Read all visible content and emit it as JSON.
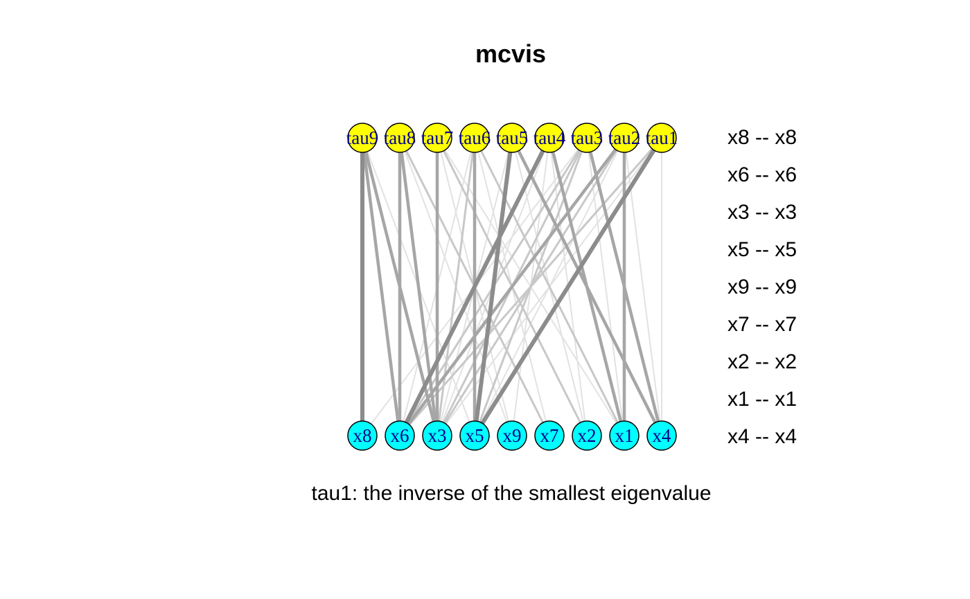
{
  "title": "mcvis",
  "caption": "tau1: the inverse of the smallest eigenvalue",
  "colors": {
    "tau_node_fill": "#ffff00",
    "x_node_fill": "#00ffff",
    "node_border": "#000000",
    "node_label": "#00008b",
    "edge_strong": "#8c8c8c",
    "edge_medium": "#a6a6a6",
    "edge_weak": "#c8c8c8",
    "edge_faint": "#e2e2e2"
  },
  "tau_nodes": [
    "tau9",
    "tau8",
    "tau7",
    "tau6",
    "tau5",
    "tau4",
    "tau3",
    "tau2",
    "tau1"
  ],
  "x_nodes": [
    "x8",
    "x6",
    "x3",
    "x5",
    "x9",
    "x7",
    "x2",
    "x1",
    "x4"
  ],
  "legend": [
    "x8 -- x8",
    "x6 -- x6",
    "x3 -- x3",
    "x5 -- x5",
    "x9 -- x9",
    "x7 -- x7",
    "x2 -- x2",
    "x1 -- x1",
    "x4 -- x4"
  ],
  "edges": [
    {
      "from": "tau1",
      "to": "x5",
      "strength": "strong"
    },
    {
      "from": "tau1",
      "to": "x6",
      "strength": "weak"
    },
    {
      "from": "tau1",
      "to": "x3",
      "strength": "faint"
    },
    {
      "from": "tau1",
      "to": "x4",
      "strength": "faint"
    },
    {
      "from": "tau2",
      "to": "x1",
      "strength": "medium"
    },
    {
      "from": "tau2",
      "to": "x6",
      "strength": "medium"
    },
    {
      "from": "tau2",
      "to": "x3",
      "strength": "weak"
    },
    {
      "from": "tau2",
      "to": "x5",
      "strength": "faint"
    },
    {
      "from": "tau2",
      "to": "x4",
      "strength": "faint"
    },
    {
      "from": "tau3",
      "to": "x4",
      "strength": "medium"
    },
    {
      "from": "tau3",
      "to": "x3",
      "strength": "weak"
    },
    {
      "from": "tau3",
      "to": "x5",
      "strength": "weak"
    },
    {
      "from": "tau3",
      "to": "x6",
      "strength": "weak"
    },
    {
      "from": "tau3",
      "to": "x1",
      "strength": "faint"
    },
    {
      "from": "tau3",
      "to": "x8",
      "strength": "faint"
    },
    {
      "from": "tau4",
      "to": "x6",
      "strength": "strong"
    },
    {
      "from": "tau4",
      "to": "x1",
      "strength": "medium"
    },
    {
      "from": "tau4",
      "to": "x2",
      "strength": "faint"
    },
    {
      "from": "tau4",
      "to": "x3",
      "strength": "faint"
    },
    {
      "from": "tau4",
      "to": "x9",
      "strength": "faint"
    },
    {
      "from": "tau5",
      "to": "x5",
      "strength": "strong"
    },
    {
      "from": "tau5",
      "to": "x4",
      "strength": "medium"
    },
    {
      "from": "tau5",
      "to": "x3",
      "strength": "faint"
    },
    {
      "from": "tau5",
      "to": "x2",
      "strength": "faint"
    },
    {
      "from": "tau6",
      "to": "x5",
      "strength": "medium"
    },
    {
      "from": "tau6",
      "to": "x3",
      "strength": "weak"
    },
    {
      "from": "tau6",
      "to": "x1",
      "strength": "weak"
    },
    {
      "from": "tau6",
      "to": "x6",
      "strength": "faint"
    },
    {
      "from": "tau6",
      "to": "x7",
      "strength": "faint"
    },
    {
      "from": "tau7",
      "to": "x3",
      "strength": "medium"
    },
    {
      "from": "tau7",
      "to": "x2",
      "strength": "weak"
    },
    {
      "from": "tau7",
      "to": "x1",
      "strength": "faint"
    },
    {
      "from": "tau7",
      "to": "x9",
      "strength": "faint"
    },
    {
      "from": "tau8",
      "to": "x6",
      "strength": "medium"
    },
    {
      "from": "tau8",
      "to": "x3",
      "strength": "medium"
    },
    {
      "from": "tau8",
      "to": "x7",
      "strength": "weak"
    },
    {
      "from": "tau8",
      "to": "x9",
      "strength": "faint"
    },
    {
      "from": "tau9",
      "to": "x8",
      "strength": "strong"
    },
    {
      "from": "tau9",
      "to": "x3",
      "strength": "medium"
    },
    {
      "from": "tau9",
      "to": "x6",
      "strength": "medium"
    },
    {
      "from": "tau9",
      "to": "x5",
      "strength": "faint"
    }
  ]
}
